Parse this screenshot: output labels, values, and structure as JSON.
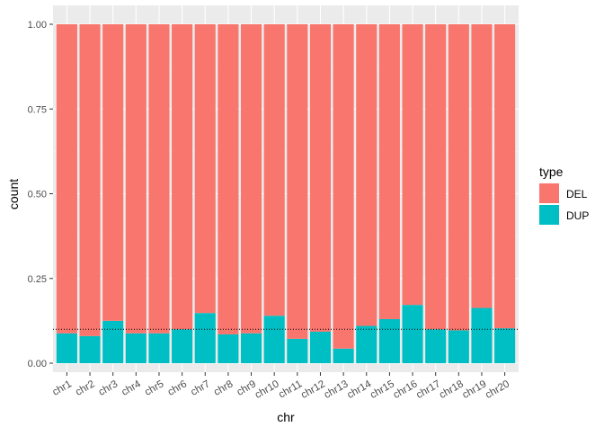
{
  "chart_data": {
    "type": "bar",
    "stacked": true,
    "title": "",
    "xlabel": "chr",
    "ylabel": "count",
    "ylim": [
      0,
      1
    ],
    "y_ticks": [
      "0.00",
      "0.25",
      "0.50",
      "0.75",
      "1.00"
    ],
    "y_tick_values": [
      0,
      0.25,
      0.5,
      0.75,
      1.0
    ],
    "x_tick_angle_deg": -30,
    "grid": true,
    "background": "#EBEBEB",
    "legend": {
      "title": "type",
      "position": "right",
      "entries": [
        "DEL",
        "DUP"
      ]
    },
    "categories": [
      "chr1",
      "chr2",
      "chr3",
      "chr4",
      "chr5",
      "chr6",
      "chr7",
      "chr8",
      "chr9",
      "chr10",
      "chr11",
      "chr12",
      "chr13",
      "chr14",
      "chr15",
      "chr16",
      "chr17",
      "chr18",
      "chr19",
      "chr20"
    ],
    "series": [
      {
        "name": "DUP",
        "color": "#00BFC4",
        "values": [
          0.088,
          0.08,
          0.125,
          0.088,
          0.088,
          0.1,
          0.148,
          0.085,
          0.088,
          0.14,
          0.072,
          0.093,
          0.043,
          0.11,
          0.13,
          0.172,
          0.1,
          0.097,
          0.163,
          0.103
        ]
      },
      {
        "name": "DEL",
        "color": "#F8766D",
        "values": [
          0.912,
          0.92,
          0.875,
          0.912,
          0.912,
          0.9,
          0.852,
          0.915,
          0.912,
          0.86,
          0.928,
          0.907,
          0.957,
          0.89,
          0.87,
          0.828,
          0.9,
          0.903,
          0.837,
          0.897
        ]
      }
    ],
    "reference_line": {
      "y": 0.1,
      "style": "dotted",
      "color": "#000000"
    }
  }
}
